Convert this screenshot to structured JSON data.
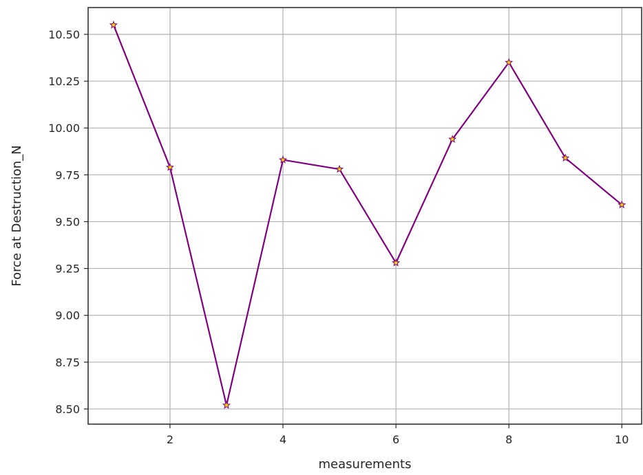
{
  "chart_data": {
    "type": "line",
    "title": "",
    "xlabel": "measurements",
    "ylabel": "Force at Destruction_N",
    "x": [
      1,
      2,
      3,
      4,
      5,
      6,
      7,
      8,
      9,
      10
    ],
    "series": [
      {
        "values": [
          10.55,
          9.79,
          8.52,
          9.83,
          9.78,
          9.28,
          9.94,
          10.35,
          9.84,
          9.59
        ],
        "line_color": "#800080",
        "marker_color": "#ffd700",
        "marker": "star"
      }
    ],
    "xlim": [
      0.55,
      10.35
    ],
    "ylim": [
      8.419,
      10.643
    ],
    "xticks": [
      2,
      4,
      6,
      8,
      10
    ],
    "xtick_labels": [
      "2",
      "4",
      "6",
      "8",
      "10"
    ],
    "yticks": [
      8.5,
      8.75,
      9.0,
      9.25,
      9.5,
      9.75,
      10.0,
      10.25,
      10.5
    ],
    "ytick_labels": [
      "8.50",
      "8.75",
      "9.00",
      "9.25",
      "9.50",
      "9.75",
      "10.00",
      "10.25",
      "10.50"
    ],
    "grid": true,
    "legend": false
  }
}
